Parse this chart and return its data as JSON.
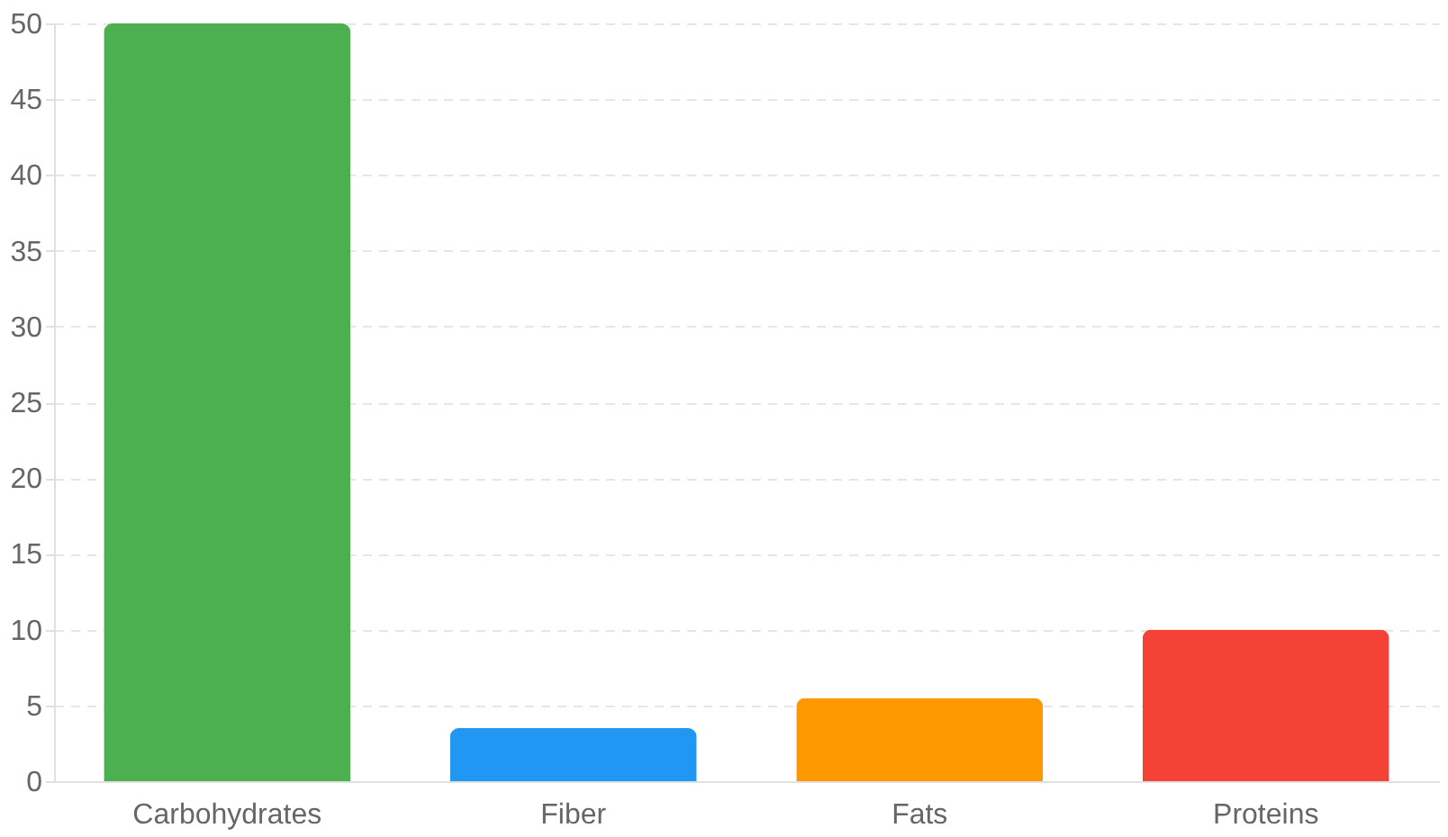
{
  "chart_data": {
    "type": "bar",
    "categories": [
      "Carbohydrates",
      "Fiber",
      "Fats",
      "Proteins"
    ],
    "values": [
      50,
      3.5,
      5.5,
      10
    ],
    "colors": [
      "#4caf50",
      "#2196f3",
      "#ff9800",
      "#f44336"
    ],
    "ylim": [
      0,
      50
    ],
    "yticks": [
      0,
      5,
      10,
      15,
      20,
      25,
      30,
      35,
      40,
      45,
      50
    ],
    "grid": "y"
  }
}
